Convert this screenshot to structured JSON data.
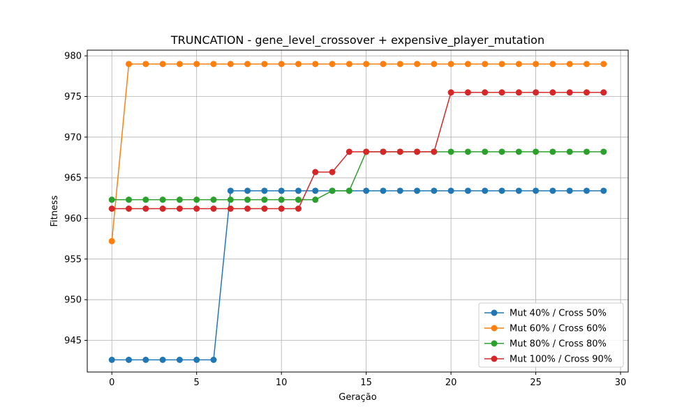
{
  "chart_data": {
    "type": "line",
    "title": "TRUNCATION - gene_level_crossover + expensive_player_mutation",
    "xlabel": "Geração",
    "ylabel": "Fitness",
    "xlim": [
      -1.45,
      30.45
    ],
    "ylim": [
      941.1,
      980.7
    ],
    "xticks": [
      0,
      5,
      10,
      15,
      20,
      25,
      30
    ],
    "yticks": [
      945,
      950,
      955,
      960,
      965,
      970,
      975,
      980
    ],
    "grid": true,
    "legend_position": "lower-right",
    "x": [
      0,
      1,
      2,
      3,
      4,
      5,
      6,
      7,
      8,
      9,
      10,
      11,
      12,
      13,
      14,
      15,
      16,
      17,
      18,
      19,
      20,
      21,
      22,
      23,
      24,
      25,
      26,
      27,
      28,
      29
    ],
    "series": [
      {
        "name": "Mut 40% / Cross 50%",
        "color": "#1f77b4",
        "values": [
          942.6,
          942.6,
          942.6,
          942.6,
          942.6,
          942.6,
          942.6,
          963.4,
          963.4,
          963.4,
          963.4,
          963.4,
          963.4,
          963.4,
          963.4,
          963.4,
          963.4,
          963.4,
          963.4,
          963.4,
          963.4,
          963.4,
          963.4,
          963.4,
          963.4,
          963.4,
          963.4,
          963.4,
          963.4,
          963.4
        ]
      },
      {
        "name": "Mut 60% / Cross 60%",
        "color": "#ff7f0e",
        "values": [
          957.2,
          979.0,
          979.0,
          979.0,
          979.0,
          979.0,
          979.0,
          979.0,
          979.0,
          979.0,
          979.0,
          979.0,
          979.0,
          979.0,
          979.0,
          979.0,
          979.0,
          979.0,
          979.0,
          979.0,
          979.0,
          979.0,
          979.0,
          979.0,
          979.0,
          979.0,
          979.0,
          979.0,
          979.0,
          979.0
        ]
      },
      {
        "name": "Mut 80% / Cross 80%",
        "color": "#2ca02c",
        "values": [
          962.3,
          962.3,
          962.3,
          962.3,
          962.3,
          962.3,
          962.3,
          962.3,
          962.3,
          962.3,
          962.3,
          962.3,
          962.3,
          963.4,
          963.4,
          968.2,
          968.2,
          968.2,
          968.2,
          968.2,
          968.2,
          968.2,
          968.2,
          968.2,
          968.2,
          968.2,
          968.2,
          968.2,
          968.2,
          968.2
        ]
      },
      {
        "name": "Mut 100% / Cross 90%",
        "color": "#d62728",
        "values": [
          961.2,
          961.2,
          961.2,
          961.2,
          961.2,
          961.2,
          961.2,
          961.2,
          961.2,
          961.2,
          961.2,
          961.2,
          965.7,
          965.7,
          968.2,
          968.2,
          968.2,
          968.2,
          968.2,
          968.2,
          975.5,
          975.5,
          975.5,
          975.5,
          975.5,
          975.5,
          975.5,
          975.5,
          975.5,
          975.5
        ]
      }
    ]
  }
}
